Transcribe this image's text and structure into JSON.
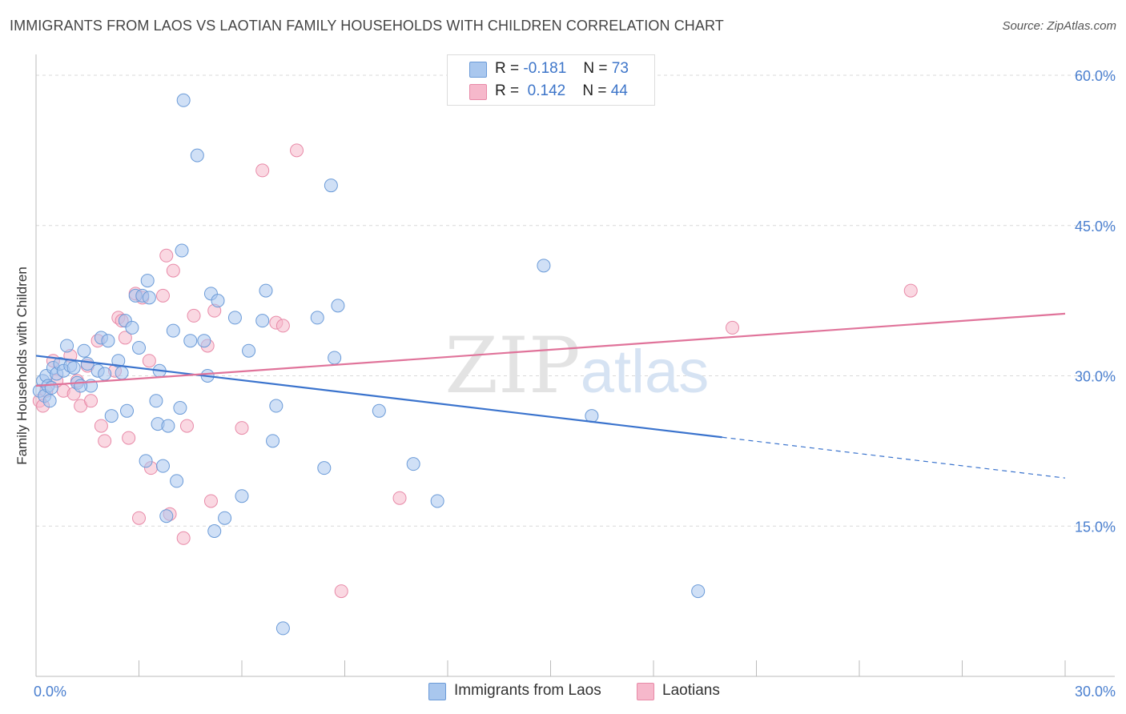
{
  "title": "IMMIGRANTS FROM LAOS VS LAOTIAN FAMILY HOUSEHOLDS WITH CHILDREN CORRELATION CHART",
  "source": "Source: ZipAtlas.com",
  "watermark": {
    "bold": "ZIP",
    "light": "atlas"
  },
  "legend": {
    "blue": {
      "r_label": "R =",
      "r_value": "-0.181",
      "n_label": "N =",
      "n_value": "73"
    },
    "pink": {
      "r_label": "R =",
      "r_value": "0.142",
      "n_label": "N =",
      "n_value": "44"
    }
  },
  "colors": {
    "blue_fill": "#a9c7ee",
    "blue_stroke": "#6b9bd8",
    "blue_line": "#3a73cd",
    "pink_fill": "#f6b8cb",
    "pink_stroke": "#e88aa8",
    "pink_line": "#e0739a",
    "tick_text": "#4a7fcf",
    "grid": "#d9d9d9"
  },
  "chart_data": {
    "type": "scatter",
    "title": "IMMIGRANTS FROM LAOS VS LAOTIAN FAMILY HOUSEHOLDS WITH CHILDREN CORRELATION CHART",
    "xlabel": "",
    "ylabel": "Family Households with Children",
    "xlim": [
      0,
      30
    ],
    "ylim": [
      0,
      65
    ],
    "x_tick_labels": [
      "0.0%",
      "30.0%"
    ],
    "y_ticks": [
      15,
      30,
      45,
      60
    ],
    "y_tick_labels": [
      "15.0%",
      "30.0%",
      "45.0%",
      "60.0%"
    ],
    "grid": true,
    "legend_position": "top-center",
    "series": [
      {
        "name": "Immigrants from Laos",
        "color": "#a9c7ee",
        "points": [
          [
            0.1,
            28.5
          ],
          [
            0.2,
            29.5
          ],
          [
            0.25,
            28.0
          ],
          [
            0.3,
            30.0
          ],
          [
            0.35,
            29.0
          ],
          [
            0.4,
            27.5
          ],
          [
            0.5,
            30.8
          ],
          [
            0.6,
            30.2
          ],
          [
            0.7,
            31.2
          ],
          [
            0.8,
            30.5
          ],
          [
            0.9,
            33.0
          ],
          [
            1.0,
            31.0
          ],
          [
            1.1,
            30.8
          ],
          [
            1.2,
            29.3
          ],
          [
            1.4,
            32.5
          ],
          [
            1.5,
            31.2
          ],
          [
            1.6,
            29.0
          ],
          [
            1.8,
            30.5
          ],
          [
            1.9,
            33.8
          ],
          [
            2.0,
            30.2
          ],
          [
            2.1,
            33.5
          ],
          [
            2.2,
            26.0
          ],
          [
            2.4,
            31.5
          ],
          [
            2.5,
            30.3
          ],
          [
            2.6,
            35.5
          ],
          [
            2.65,
            26.5
          ],
          [
            2.8,
            34.8
          ],
          [
            2.9,
            38.0
          ],
          [
            3.0,
            32.8
          ],
          [
            3.1,
            38.0
          ],
          [
            3.2,
            21.5
          ],
          [
            3.25,
            39.5
          ],
          [
            3.3,
            37.8
          ],
          [
            3.5,
            27.5
          ],
          [
            3.55,
            25.2
          ],
          [
            3.6,
            30.5
          ],
          [
            3.7,
            21.0
          ],
          [
            3.8,
            16.0
          ],
          [
            3.85,
            25.0
          ],
          [
            4.0,
            34.5
          ],
          [
            4.1,
            19.5
          ],
          [
            4.2,
            26.8
          ],
          [
            4.25,
            42.5
          ],
          [
            4.3,
            57.5
          ],
          [
            4.5,
            33.5
          ],
          [
            4.7,
            52.0
          ],
          [
            4.9,
            33.5
          ],
          [
            5.0,
            30.0
          ],
          [
            5.1,
            38.2
          ],
          [
            5.2,
            14.5
          ],
          [
            5.3,
            37.5
          ],
          [
            5.5,
            15.8
          ],
          [
            5.8,
            35.8
          ],
          [
            6.0,
            18.0
          ],
          [
            6.2,
            32.5
          ],
          [
            6.6,
            35.5
          ],
          [
            6.7,
            38.5
          ],
          [
            6.9,
            23.5
          ],
          [
            7.0,
            27.0
          ],
          [
            8.2,
            35.8
          ],
          [
            8.4,
            20.8
          ],
          [
            8.6,
            49.0
          ],
          [
            8.7,
            31.8
          ],
          [
            8.8,
            37.0
          ],
          [
            10.0,
            26.5
          ],
          [
            11.0,
            21.2
          ],
          [
            11.7,
            17.5
          ],
          [
            14.8,
            41.0
          ],
          [
            16.2,
            26.0
          ],
          [
            19.3,
            8.5
          ],
          [
            7.2,
            4.8
          ],
          [
            1.3,
            29.0
          ],
          [
            0.45,
            28.8
          ]
        ]
      },
      {
        "name": "Laotians",
        "color": "#f6b8cb",
        "points": [
          [
            0.1,
            27.5
          ],
          [
            0.3,
            28.5
          ],
          [
            0.5,
            31.5
          ],
          [
            0.8,
            28.5
          ],
          [
            1.0,
            32.0
          ],
          [
            1.2,
            29.5
          ],
          [
            1.3,
            27.0
          ],
          [
            1.5,
            31.0
          ],
          [
            1.6,
            27.5
          ],
          [
            1.8,
            33.5
          ],
          [
            1.9,
            25.0
          ],
          [
            2.0,
            23.5
          ],
          [
            2.3,
            30.5
          ],
          [
            2.4,
            35.8
          ],
          [
            2.5,
            35.5
          ],
          [
            2.6,
            33.8
          ],
          [
            2.7,
            23.8
          ],
          [
            2.9,
            38.2
          ],
          [
            3.0,
            15.8
          ],
          [
            3.1,
            37.8
          ],
          [
            3.3,
            31.5
          ],
          [
            3.35,
            20.8
          ],
          [
            3.7,
            38.0
          ],
          [
            3.8,
            42.0
          ],
          [
            3.9,
            16.2
          ],
          [
            4.0,
            40.5
          ],
          [
            4.3,
            13.8
          ],
          [
            4.4,
            25.0
          ],
          [
            4.6,
            36.0
          ],
          [
            5.0,
            33.0
          ],
          [
            5.1,
            17.5
          ],
          [
            5.2,
            36.5
          ],
          [
            6.0,
            24.8
          ],
          [
            6.6,
            50.5
          ],
          [
            7.0,
            35.3
          ],
          [
            7.2,
            35.0
          ],
          [
            7.6,
            52.5
          ],
          [
            8.9,
            8.5
          ],
          [
            10.6,
            17.8
          ],
          [
            20.3,
            34.8
          ],
          [
            25.5,
            38.5
          ],
          [
            1.1,
            28.2
          ],
          [
            0.2,
            27.0
          ],
          [
            0.6,
            29.5
          ]
        ]
      }
    ],
    "trendlines": [
      {
        "series": "Immigrants from Laos",
        "x": [
          0,
          30
        ],
        "y": [
          32.0,
          19.8
        ],
        "solid_until_x": 20.0
      },
      {
        "series": "Laotians",
        "x": [
          0,
          30
        ],
        "y": [
          29.0,
          36.2
        ]
      }
    ]
  },
  "legend_bottom": [
    "Immigrants from Laos",
    "Laotians"
  ]
}
